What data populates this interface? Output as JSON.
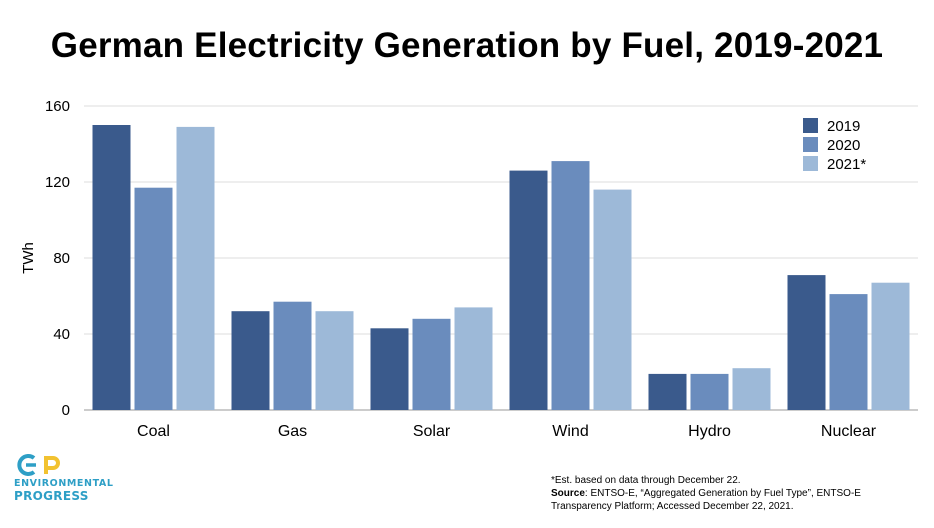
{
  "title": "German Electricity Generation by Fuel, 2019-2021",
  "chart_data": {
    "type": "bar",
    "title": "German Electricity Generation by Fuel, 2019-2021",
    "ylabel": "TWh",
    "xlabel": "",
    "ylim": [
      0,
      160
    ],
    "yticks": [
      0,
      40,
      80,
      120,
      160
    ],
    "grid": true,
    "legend_position": "top-right",
    "categories": [
      "Coal",
      "Gas",
      "Solar",
      "Wind",
      "Hydro",
      "Nuclear"
    ],
    "series": [
      {
        "name": "2019",
        "color": "#3a5a8c",
        "values": [
          150,
          52,
          43,
          126,
          19,
          71
        ]
      },
      {
        "name": "2020",
        "color": "#6a8cbd",
        "values": [
          117,
          57,
          48,
          131,
          19,
          61
        ]
      },
      {
        "name": "2021*",
        "color": "#9db9d8",
        "values": [
          149,
          52,
          54,
          116,
          22,
          67
        ]
      }
    ]
  },
  "footnote": {
    "note": "*Est. based on data through December 22.",
    "source_label": "Source",
    "source_text": ": ENTSO-E, “Aggregated Generation by Fuel Type”, ENTSO-E Transparency Platform; Accessed December 22, 2021."
  },
  "logo": {
    "line1": "ENVIRONMENTAL",
    "line2": "PROGRESS",
    "colors": {
      "blue": "#2e9fc6",
      "yellow": "#f2c230"
    }
  }
}
